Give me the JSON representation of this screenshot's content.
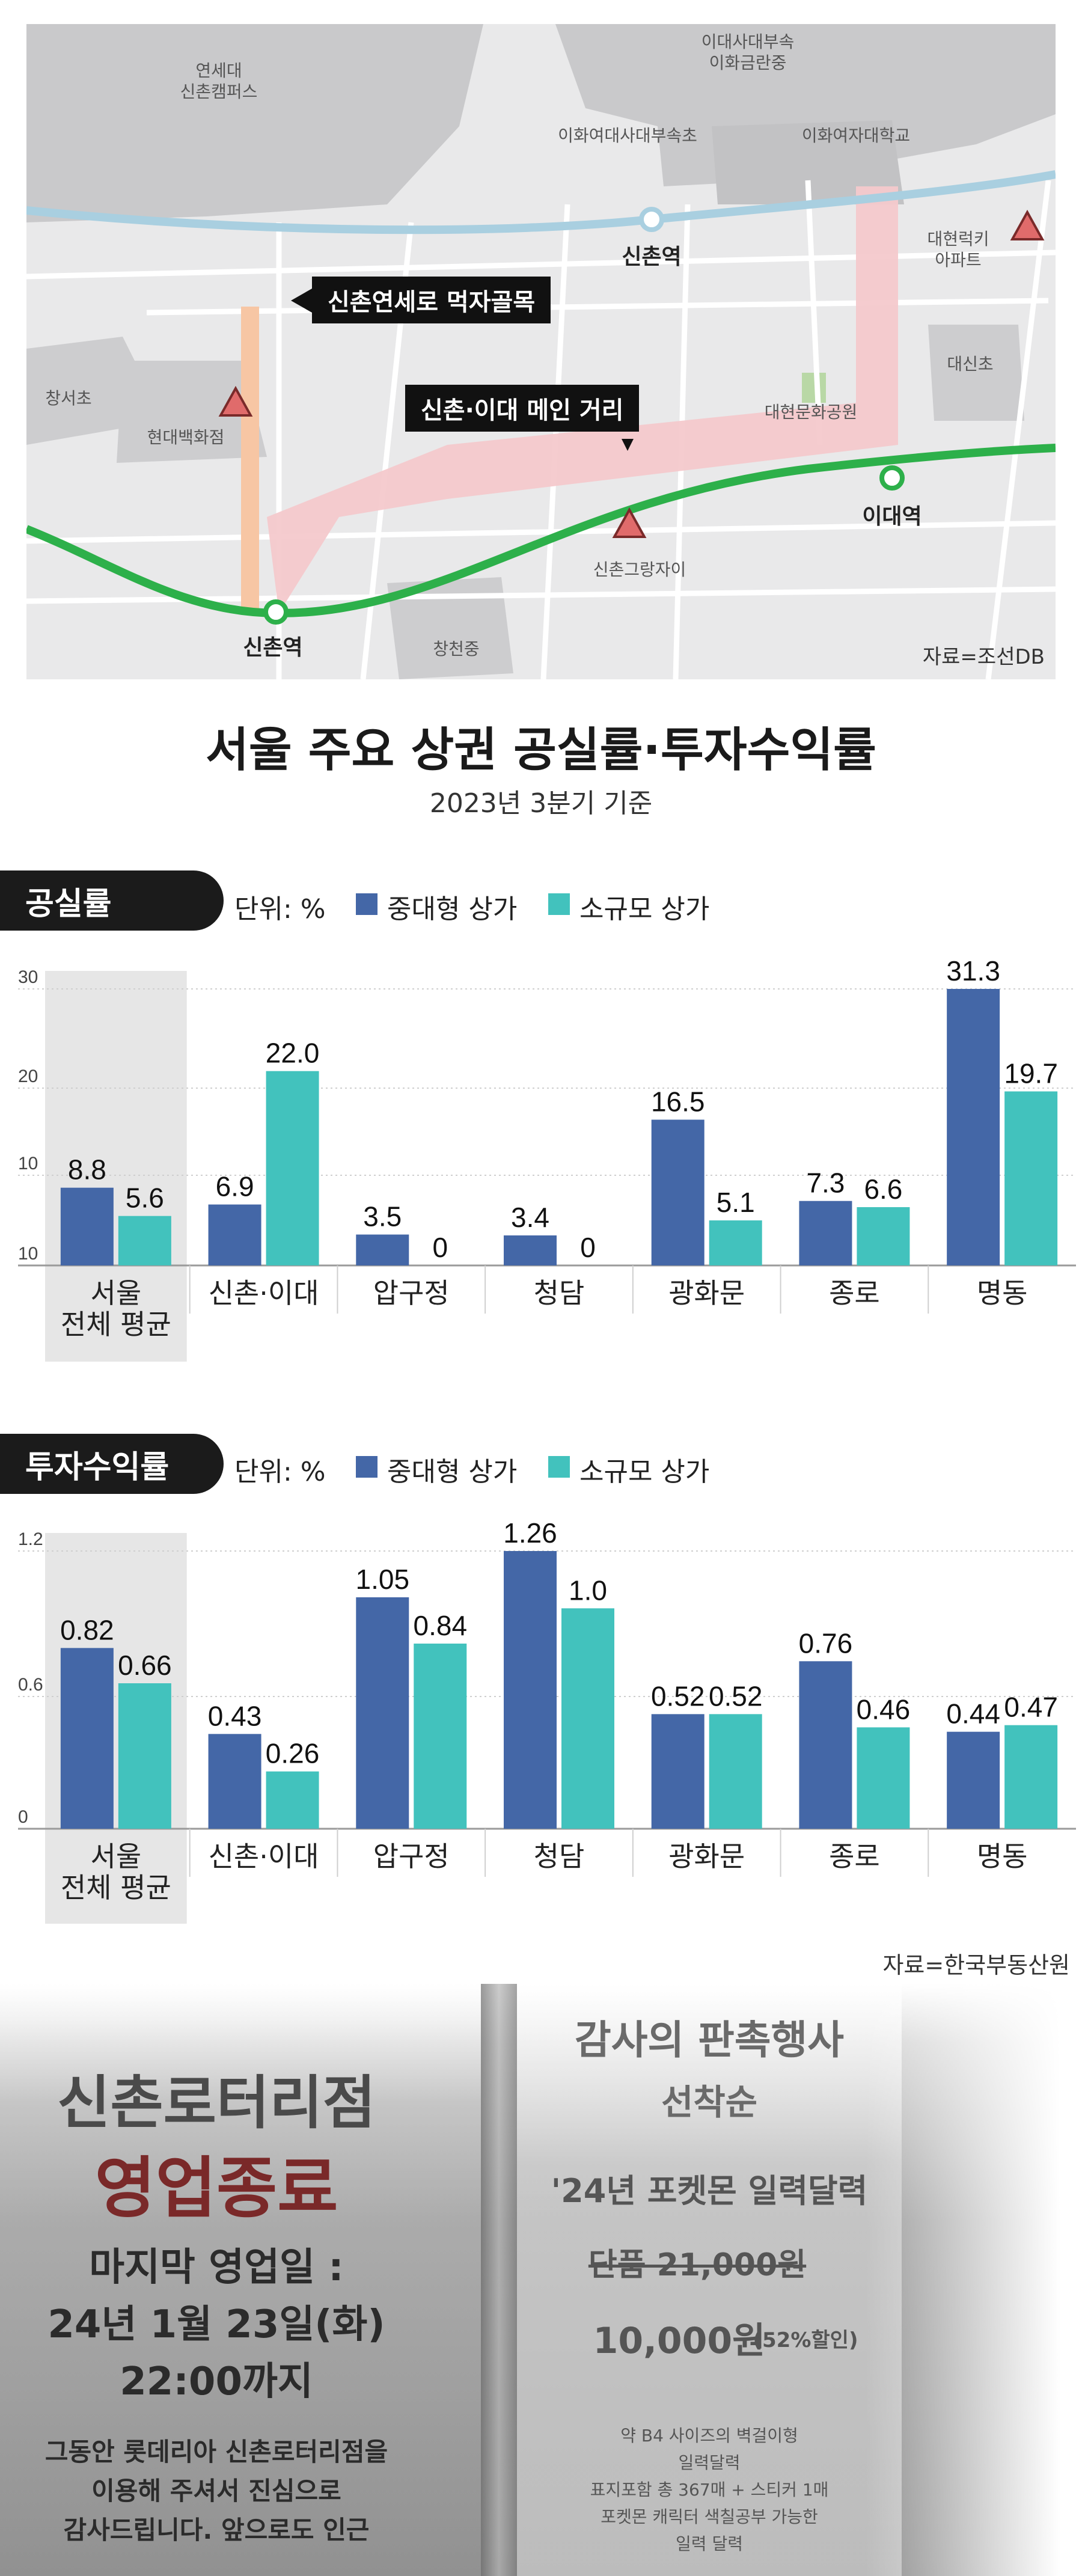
{
  "map": {
    "labels": [
      {
        "text": "연세대\n신촌캠퍼스"
      },
      {
        "text": "이대사대부속\n이화금란중"
      },
      {
        "text": "이화여대사대부속초"
      },
      {
        "text": "이화여자대학교"
      },
      {
        "text": "대현럭키\n아파트"
      },
      {
        "text": "창서초"
      },
      {
        "text": "현대백화점"
      },
      {
        "text": "대신초"
      },
      {
        "text": "대현문화공원"
      },
      {
        "text": "신촌그랑자이"
      },
      {
        "text": "창천중"
      }
    ],
    "stations": {
      "top": "신촌역",
      "bottom_left": "신촌역",
      "right": "이대역"
    },
    "callouts": {
      "muckja": "신촌연세로 먹자골목",
      "main_street": "신촌·이대 메인 거리"
    },
    "source": "자료=조선DB"
  },
  "title": "서울 주요 상권 공실률·투자수익률",
  "subtitle": "2023년 3분기 기준",
  "legend": {
    "unit": "단위: %",
    "mid_large": "중대형 상가",
    "small": "소규모 상가"
  },
  "colors": {
    "mid_large": "#4467a7",
    "small": "#42c2bd",
    "avg_bg": "#e6e6e6"
  },
  "chart_data": [
    {
      "type": "bar",
      "title": "공실률",
      "categories": [
        "서울\n전체 평균",
        "신촌·이대",
        "압구정",
        "청담",
        "광화문",
        "종로",
        "명동"
      ],
      "series": [
        {
          "name": "중대형 상가",
          "values": [
            8.8,
            6.9,
            3.5,
            3.4,
            16.5,
            7.3,
            31.3
          ],
          "labels": [
            "8.8",
            "6.9",
            "3.5",
            "3.4",
            "16.5",
            "7.3",
            "31.3"
          ]
        },
        {
          "name": "소규모 상가",
          "values": [
            5.6,
            22.0,
            0,
            0,
            5.1,
            6.6,
            19.7
          ],
          "labels": [
            "5.6",
            "22.0",
            "0",
            "0",
            "5.1",
            "6.6",
            "19.7"
          ]
        }
      ],
      "yticks": [
        "30",
        "20",
        "10",
        "10"
      ],
      "ylim": [
        0,
        31.3
      ]
    },
    {
      "type": "bar",
      "title": "투자수익률",
      "categories": [
        "서울\n전체 평균",
        "신촌·이대",
        "압구정",
        "청담",
        "광화문",
        "종로",
        "명동"
      ],
      "series": [
        {
          "name": "중대형 상가",
          "values": [
            0.82,
            0.43,
            1.05,
            1.26,
            0.52,
            0.76,
            0.44
          ],
          "labels": [
            "0.82",
            "0.43",
            "1.05",
            "1.26",
            "0.52",
            "0.76",
            "0.44"
          ]
        },
        {
          "name": "소규모 상가",
          "values": [
            0.66,
            0.26,
            0.84,
            1.0,
            0.52,
            0.46,
            0.47
          ],
          "labels": [
            "0.66",
            "0.26",
            "0.84",
            "1.0",
            "0.52",
            "0.46",
            "0.47"
          ]
        }
      ],
      "yticks": [
        "1.2",
        "0.6",
        "0"
      ],
      "ylim": [
        0,
        1.26
      ]
    }
  ],
  "source": "자료=한국부동산원",
  "photo": {
    "left_poster": {
      "store": "신촌로터리점",
      "closing": "영업종료",
      "last_day_label": "마지막 영업일 :",
      "date": "24년 1월 23일(화)",
      "time": "22:00까지",
      "msg1": "그동안 롯데리아 신촌로터리점을",
      "msg2": "이용해 주셔서 진심으로",
      "msg3": "감사드립니다. 앞으로도 인근"
    },
    "right_poster": {
      "event": "감사의 판촉행사",
      "first_come": "선착순",
      "product": "'24년 포켓몬 일력달력",
      "single_price": "단품 21,000원",
      "sale_price": "10,000원",
      "discount": "(52%할인)",
      "desc1": "약 B4 사이즈의 벽걸이형",
      "desc2": "일력달력",
      "desc3": "표지포함 총 367매 + 스티커 1매",
      "desc4": "포켓몬 캐릭터 색칠공부 가능한",
      "desc5": "일력 달력"
    }
  }
}
